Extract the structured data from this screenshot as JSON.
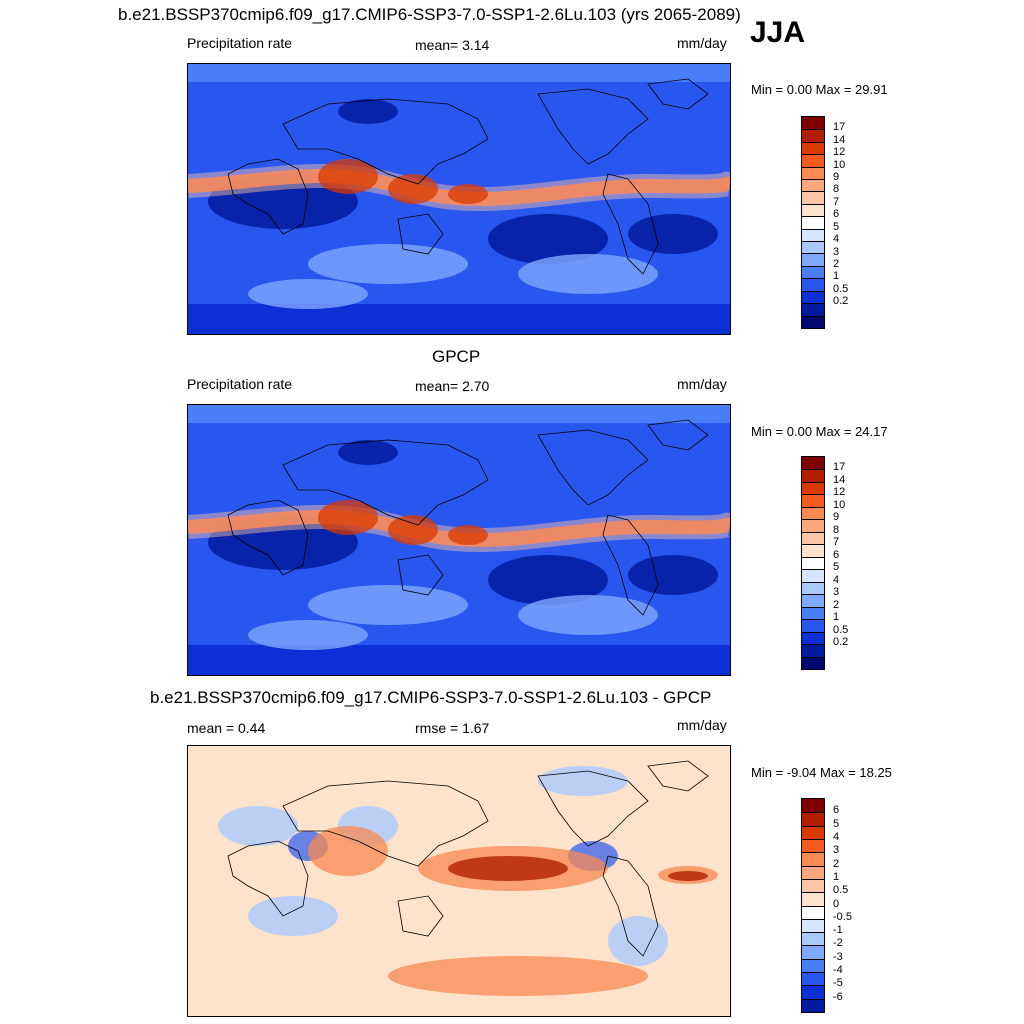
{
  "season": "JJA",
  "panels": [
    {
      "title": "b.e21.BSSP370cmip6.f09_g17.CMIP6-SSP3-7.0-SSP1-2.6Lu.103 (yrs 2065-2089)",
      "left_label": "Precipitation rate",
      "center_label": "mean=   3.14",
      "units": "mm/day",
      "minmax": "Min =   0.00 Max =  29.91",
      "colorbar": {
        "labels": [
          "17",
          "14",
          "12",
          "10",
          "9",
          "8",
          "7",
          "6",
          "5",
          "4",
          "3",
          "2",
          "1",
          "0.5",
          "0.2"
        ],
        "colors": [
          "#7f0000",
          "#b21e00",
          "#d93a00",
          "#f25a1e",
          "#f88a52",
          "#fba97c",
          "#fcc6a6",
          "#fde3cc",
          "#ffffff",
          "#d6e6ff",
          "#aac9ff",
          "#7fa8ff",
          "#4a7ffb",
          "#2a56f0",
          "#0f2fd6",
          "#001a9e",
          "#000a6e"
        ]
      },
      "map_kind": "precip"
    },
    {
      "title": "GPCP",
      "left_label": "Precipitation rate",
      "center_label": "mean=   2.70",
      "units": "mm/day",
      "minmax": "Min =   0.00 Max =  24.17",
      "colorbar": {
        "labels": [
          "17",
          "14",
          "12",
          "10",
          "9",
          "8",
          "7",
          "6",
          "5",
          "4",
          "3",
          "2",
          "1",
          "0.5",
          "0.2"
        ],
        "colors": [
          "#7f0000",
          "#b21e00",
          "#d93a00",
          "#f25a1e",
          "#f88a52",
          "#fba97c",
          "#fcc6a6",
          "#fde3cc",
          "#ffffff",
          "#d6e6ff",
          "#aac9ff",
          "#7fa8ff",
          "#4a7ffb",
          "#2a56f0",
          "#0f2fd6",
          "#001a9e",
          "#000a6e"
        ]
      },
      "map_kind": "precip"
    },
    {
      "title": "b.e21.BSSP370cmip6.f09_g17.CMIP6-SSP3-7.0-SSP1-2.6Lu.103 - GPCP",
      "left_label": "mean =   0.44",
      "center_label": "rmse =   1.67",
      "units": "mm/day",
      "minmax": "Min =  -9.04 Max =  18.25",
      "colorbar": {
        "labels": [
          "6",
          "5",
          "4",
          "3",
          "2",
          "1",
          "0.5",
          "0",
          "-0.5",
          "-1",
          "-2",
          "-3",
          "-4",
          "-5",
          "-6"
        ],
        "colors": [
          "#7f0000",
          "#b21e00",
          "#d93a00",
          "#f25a1e",
          "#f88a52",
          "#fba97c",
          "#fcc6a6",
          "#fde3cc",
          "#ffffff",
          "#d6e6ff",
          "#aac9ff",
          "#7fa8ff",
          "#4a7ffb",
          "#2a56f0",
          "#0f2fd6",
          "#001a9e"
        ]
      },
      "map_kind": "diff"
    }
  ]
}
